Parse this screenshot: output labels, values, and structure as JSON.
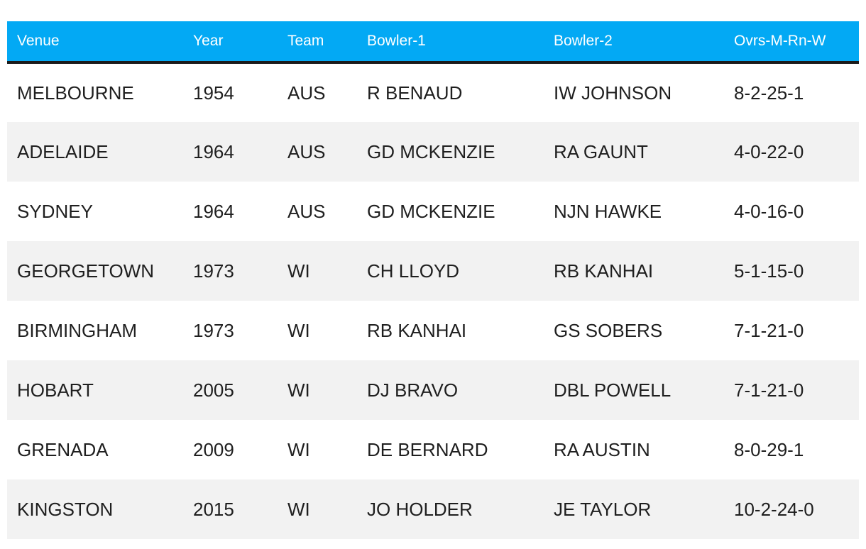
{
  "table": {
    "headers": [
      "Venue",
      "Year",
      "Team",
      "Bowler-1",
      "Bowler-2",
      "Ovrs-M-Rn-W"
    ],
    "rows": [
      [
        "MELBOURNE",
        "1954",
        "AUS",
        "R BENAUD",
        "IW JOHNSON",
        "8-2-25-1"
      ],
      [
        "ADELAIDE",
        "1964",
        "AUS",
        "GD MCKENZIE",
        "RA GAUNT",
        "4-0-22-0"
      ],
      [
        "SYDNEY",
        "1964",
        "AUS",
        "GD MCKENZIE",
        "NJN HAWKE",
        "4-0-16-0"
      ],
      [
        "GEORGETOWN",
        "1973",
        "WI",
        "CH LLOYD",
        "RB KANHAI",
        "5-1-15-0"
      ],
      [
        "BIRMINGHAM",
        "1973",
        "WI",
        "RB KANHAI",
        "GS SOBERS",
        "7-1-21-0"
      ],
      [
        "HOBART",
        "2005",
        "WI",
        "DJ BRAVO",
        "DBL POWELL",
        "7-1-21-0"
      ],
      [
        "GRENADA",
        "2009",
        "WI",
        "DE BERNARD",
        "RA AUSTIN",
        "8-0-29-1"
      ],
      [
        "KINGSTON",
        "2015",
        "WI",
        "JO HOLDER",
        "JE TAYLOR",
        "10-2-24-0"
      ]
    ]
  },
  "colors": {
    "header_bg": "#03a9f4",
    "header_text": "#ffffff",
    "header_rule": "#1b1b1b",
    "row_shaded": "#f2f2f2",
    "row_plain": "#ffffff",
    "text": "#1f1f1f"
  }
}
